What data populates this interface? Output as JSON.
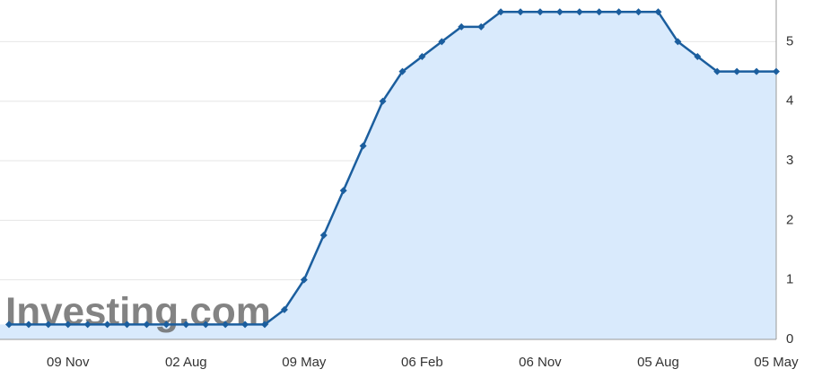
{
  "chart_data": {
    "type": "area",
    "watermark": "Investing.com",
    "categories": [
      null,
      null,
      null,
      "09 Nov",
      null,
      null,
      null,
      null,
      null,
      "02 Aug",
      null,
      null,
      null,
      null,
      null,
      "09 May",
      null,
      null,
      null,
      null,
      null,
      "06 Feb",
      null,
      null,
      null,
      null,
      null,
      "06 Nov",
      null,
      null,
      null,
      null,
      null,
      "05 Aug",
      null,
      null,
      null,
      null,
      null,
      "05 May"
    ],
    "values": [
      0.25,
      0.25,
      0.25,
      0.25,
      0.25,
      0.25,
      0.25,
      0.25,
      0.25,
      0.25,
      0.25,
      0.25,
      0.25,
      0.25,
      0.5,
      1.0,
      1.75,
      2.5,
      3.25,
      4.0,
      4.5,
      4.75,
      5.0,
      5.25,
      5.25,
      5.5,
      5.5,
      5.5,
      5.5,
      5.5,
      5.5,
      5.5,
      5.5,
      5.5,
      5.0,
      4.75,
      4.5,
      4.5,
      4.5,
      4.5
    ],
    "color": "#1b5e9e",
    "fill": "#d9eafc",
    "ylim": [
      0,
      5.7
    ],
    "yticks": [
      0,
      1,
      2,
      3,
      4,
      5
    ],
    "grid": true,
    "y_axis_side": "right"
  }
}
